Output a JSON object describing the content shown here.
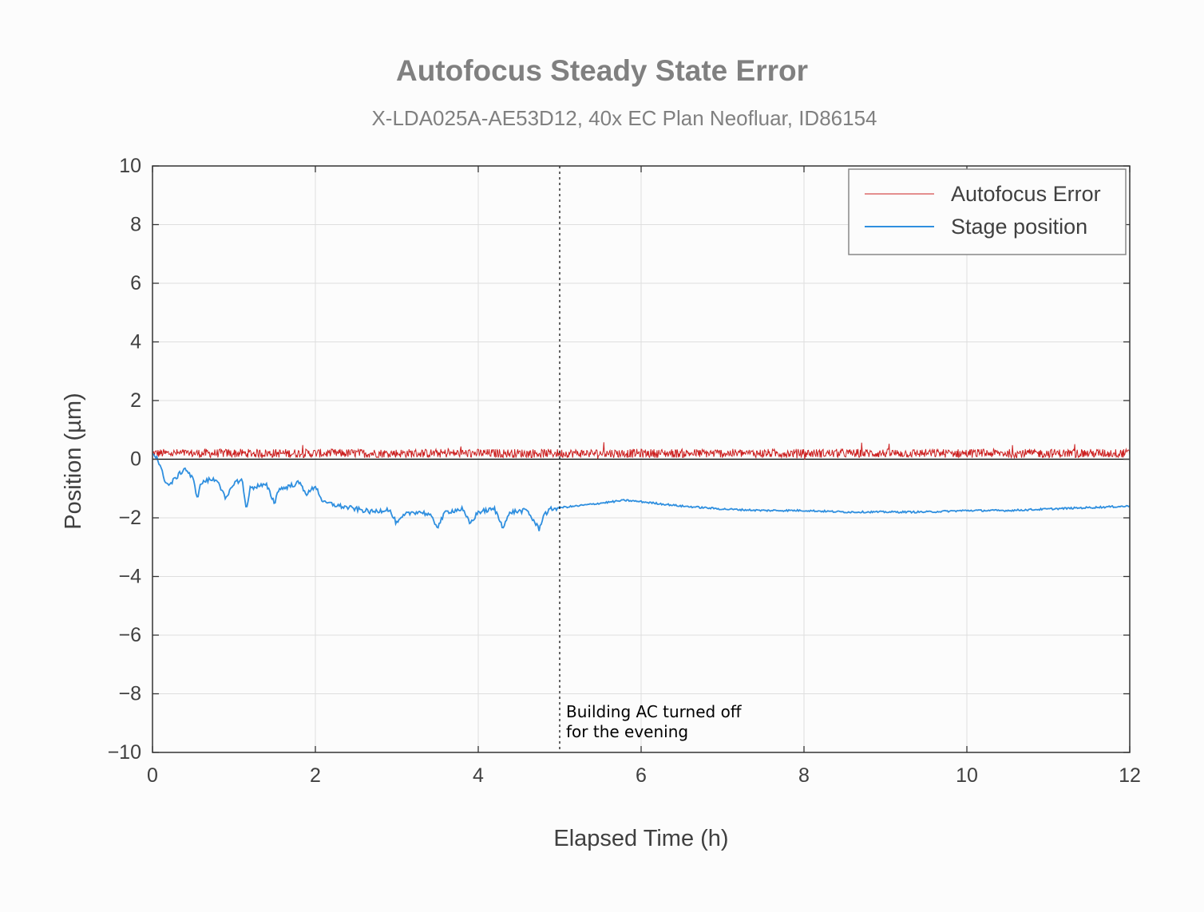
{
  "chart_data": {
    "type": "line",
    "title": "Autofocus Steady State Error",
    "subtitle": "X-LDA025A-AE53D12, 40x EC Plan Neofluar, ID86154",
    "xlabel": "Elapsed Time (h)",
    "ylabel": "Position (µm)",
    "xlim": [
      0,
      12
    ],
    "ylim": [
      -10,
      10
    ],
    "xticks": [
      "0",
      "2",
      "4",
      "6",
      "8",
      "10",
      "12"
    ],
    "yticks": [
      "10",
      "8",
      "6",
      "4",
      "2",
      "0",
      "−2",
      "−4",
      "−6",
      "−8",
      "−10"
    ],
    "grid": true,
    "legend_position": "top-right",
    "series": [
      {
        "name": "Autofocus Error",
        "color": "#cc1f1f",
        "style": "noisy",
        "mean": 0.2,
        "noise_amplitude": 0.15,
        "x": [
          0,
          12
        ],
        "values": [
          0.2,
          0.2
        ]
      },
      {
        "name": "Stage position",
        "color": "#2f8fdf",
        "x": [
          0,
          0.05,
          0.15,
          0.2,
          0.3,
          0.4,
          0.5,
          0.55,
          0.6,
          0.7,
          0.8,
          0.9,
          1.0,
          1.1,
          1.15,
          1.2,
          1.3,
          1.4,
          1.5,
          1.55,
          1.6,
          1.7,
          1.8,
          1.9,
          2.0,
          2.1,
          2.15,
          2.3,
          2.5,
          2.7,
          2.9,
          3.0,
          3.1,
          3.2,
          3.3,
          3.4,
          3.5,
          3.6,
          3.8,
          3.9,
          4.0,
          4.2,
          4.3,
          4.4,
          4.6,
          4.75,
          4.8,
          4.9,
          5.0,
          5.2,
          5.5,
          5.8,
          6.0,
          6.5,
          7.0,
          7.5,
          8.0,
          8.5,
          9.0,
          9.5,
          10.0,
          10.5,
          11.0,
          11.5,
          12.0
        ],
        "values": [
          0.2,
          0.1,
          -0.7,
          -0.9,
          -0.6,
          -0.3,
          -0.7,
          -1.3,
          -0.8,
          -0.7,
          -0.7,
          -1.4,
          -0.8,
          -0.7,
          -1.7,
          -1.0,
          -0.9,
          -0.9,
          -1.5,
          -1.0,
          -1.0,
          -0.9,
          -0.8,
          -1.2,
          -0.9,
          -1.5,
          -1.5,
          -1.6,
          -1.7,
          -1.8,
          -1.7,
          -2.2,
          -1.9,
          -1.8,
          -1.8,
          -1.9,
          -2.3,
          -1.8,
          -1.7,
          -2.2,
          -1.8,
          -1.7,
          -2.3,
          -1.8,
          -1.75,
          -2.4,
          -1.9,
          -1.7,
          -1.65,
          -1.6,
          -1.5,
          -1.4,
          -1.45,
          -1.6,
          -1.7,
          -1.75,
          -1.75,
          -1.8,
          -1.8,
          -1.8,
          -1.75,
          -1.75,
          -1.7,
          -1.65,
          -1.6
        ]
      }
    ],
    "annotations": [
      {
        "x": 5,
        "type": "vline",
        "style": "dotted",
        "text_line1": "Building AC turned off",
        "text_line2": "for the evening"
      }
    ]
  }
}
